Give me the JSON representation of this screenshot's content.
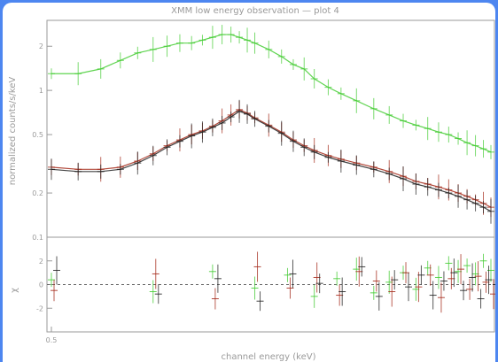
{
  "chart_data": [
    {
      "type": "scatter",
      "panel": "spectrum",
      "title": "XMM low energy observation — plot 4",
      "xlabel": "",
      "ylabel": "normalized counts/s/keV",
      "yscale": "log",
      "ylim": [
        0.1,
        3
      ],
      "xlim": [
        0.5,
        10
      ],
      "ytick_labels": [
        "2",
        "1",
        "0.5",
        "0.2",
        "0.1"
      ],
      "ytick_values": [
        2,
        1,
        0.5,
        0.2,
        0.1
      ],
      "grid": false,
      "colors": {
        "green": "#44cc33",
        "red": "#a52a1a",
        "black": "#222222"
      },
      "series": [
        {
          "color": "#44cc33",
          "x": [
            0.5,
            0.6,
            0.7,
            0.8,
            0.9,
            1.0,
            1.1,
            1.2,
            1.3,
            1.4,
            1.5,
            1.6,
            1.7,
            1.8,
            1.9,
            2.0,
            2.2,
            2.4,
            2.6,
            2.8,
            3.0,
            3.3,
            3.6,
            4.0,
            4.5,
            5.0,
            5.5,
            6.0,
            6.5,
            7.0,
            7.5,
            8.0,
            8.5,
            9.0,
            9.5,
            10.0
          ],
          "y": [
            1.3,
            1.3,
            1.4,
            1.6,
            1.8,
            1.9,
            2.0,
            2.1,
            2.1,
            2.2,
            2.3,
            2.4,
            2.4,
            2.3,
            2.2,
            2.1,
            1.9,
            1.7,
            1.5,
            1.4,
            1.2,
            1.05,
            0.95,
            0.85,
            0.75,
            0.68,
            0.62,
            0.58,
            0.55,
            0.52,
            0.5,
            0.47,
            0.44,
            0.42,
            0.4,
            0.38
          ]
        },
        {
          "color": "#a52a1a",
          "x": [
            0.5,
            0.6,
            0.7,
            0.8,
            0.9,
            1.0,
            1.1,
            1.2,
            1.3,
            1.4,
            1.5,
            1.6,
            1.7,
            1.8,
            1.9,
            2.0,
            2.2,
            2.4,
            2.6,
            2.8,
            3.0,
            3.3,
            3.6,
            4.0,
            4.5,
            5.0,
            5.5,
            6.0,
            6.5,
            7.0,
            7.5,
            8.0,
            8.5,
            9.0,
            9.5,
            10.0
          ],
          "y": [
            0.3,
            0.29,
            0.29,
            0.3,
            0.33,
            0.37,
            0.42,
            0.46,
            0.5,
            0.53,
            0.57,
            0.62,
            0.68,
            0.74,
            0.7,
            0.65,
            0.58,
            0.52,
            0.46,
            0.42,
            0.39,
            0.36,
            0.34,
            0.32,
            0.3,
            0.28,
            0.26,
            0.24,
            0.23,
            0.22,
            0.21,
            0.2,
            0.19,
            0.18,
            0.17,
            0.16
          ]
        },
        {
          "color": "#222222",
          "x": [
            0.5,
            0.6,
            0.7,
            0.8,
            0.9,
            1.0,
            1.1,
            1.2,
            1.3,
            1.4,
            1.5,
            1.6,
            1.7,
            1.8,
            1.9,
            2.0,
            2.2,
            2.4,
            2.6,
            2.8,
            3.0,
            3.3,
            3.6,
            4.0,
            4.5,
            5.0,
            5.5,
            6.0,
            6.5,
            7.0,
            7.5,
            8.0,
            8.5,
            9.0,
            9.5,
            10.0
          ],
          "y": [
            0.29,
            0.28,
            0.28,
            0.29,
            0.32,
            0.36,
            0.41,
            0.45,
            0.49,
            0.52,
            0.56,
            0.6,
            0.66,
            0.72,
            0.69,
            0.64,
            0.57,
            0.51,
            0.45,
            0.41,
            0.38,
            0.35,
            0.33,
            0.31,
            0.29,
            0.27,
            0.25,
            0.23,
            0.22,
            0.21,
            0.2,
            0.19,
            0.18,
            0.17,
            0.16,
            0.15
          ]
        }
      ]
    },
    {
      "type": "scatter",
      "panel": "residuals",
      "xlabel": "channel energy (keV)",
      "ylabel": "χ",
      "ylim": [
        -4,
        4
      ],
      "xlim": [
        0.5,
        10
      ],
      "ytick_labels": [
        "2",
        "0",
        "-2"
      ],
      "ytick_values": [
        2,
        0,
        -2
      ],
      "xtick_labels": [
        "0.5"
      ],
      "xtick_values": [
        0.5
      ],
      "zero_line": true,
      "series": [
        {
          "color": "#44cc33",
          "x": [
            0.5,
            1.0,
            1.5,
            2.0,
            2.5,
            3.0,
            3.5,
            4.0,
            4.5,
            5.0,
            5.5,
            6.0,
            6.5,
            7.0,
            7.5,
            8.0,
            8.5,
            9.0,
            9.5,
            10.0
          ],
          "y": [
            0.4,
            -0.6,
            1.1,
            -0.3,
            0.8,
            -1.0,
            0.5,
            1.3,
            -0.7,
            0.2,
            1.0,
            -0.4,
            1.4,
            0.6,
            1.8,
            1.1,
            1.6,
            0.9,
            2.0,
            1.2
          ]
        },
        {
          "color": "#a52a1a",
          "x": [
            0.5,
            1.0,
            1.5,
            2.0,
            2.5,
            3.0,
            3.5,
            4.0,
            4.5,
            5.0,
            5.5,
            6.0,
            6.5,
            7.0,
            7.5,
            8.0,
            8.5,
            9.0,
            9.5,
            10.0
          ],
          "y": [
            -0.5,
            0.9,
            -1.2,
            1.5,
            -0.3,
            0.6,
            -0.9,
            1.1,
            0.3,
            -0.6,
            1.0,
            -0.2,
            0.8,
            -1.1,
            0.5,
            1.3,
            -0.4,
            0.7,
            0.2,
            -0.8
          ]
        },
        {
          "color": "#222222",
          "x": [
            0.5,
            1.0,
            1.5,
            2.0,
            2.5,
            3.0,
            3.5,
            4.0,
            4.5,
            5.0,
            5.5,
            6.0,
            6.5,
            7.0,
            7.5,
            8.0,
            8.5,
            9.0,
            9.5,
            10.0
          ],
          "y": [
            1.2,
            -0.8,
            0.5,
            -1.4,
            0.9,
            0.1,
            -0.6,
            1.5,
            -1.0,
            0.4,
            -0.2,
            0.8,
            -0.9,
            0.3,
            1.0,
            -0.5,
            0.6,
            -1.2,
            0.4,
            0.0
          ]
        }
      ]
    }
  ]
}
